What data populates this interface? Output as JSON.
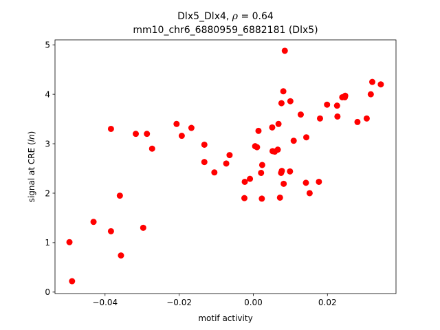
{
  "chart_data": {
    "type": "scatter",
    "title_line1": "Dlx5_Dlx4, ",
    "title_rho_symbol": "ρ",
    "title_rho_value": " = 0.64",
    "title_line2": "mm10_chr6_6880959_6882181 (Dlx5)",
    "xlabel": "motif activity",
    "ylabel_prefix": "signal at CRE (",
    "ylabel_ital": "ln",
    "ylabel_suffix": ")",
    "xlim": [
      -0.0535,
      0.0385
    ],
    "ylim": [
      -0.03,
      5.1
    ],
    "xticks": [
      -0.04,
      -0.02,
      0.0,
      0.02
    ],
    "xtick_labels": [
      "−0.04",
      "−0.02",
      "0.00",
      "0.02"
    ],
    "yticks": [
      0,
      1,
      2,
      3,
      4,
      5
    ],
    "ytick_labels": [
      "0",
      "1",
      "2",
      "3",
      "4",
      "5"
    ],
    "marker_color": "#ff0000",
    "grid": false,
    "points": [
      {
        "x": -0.0496,
        "y": 1.01
      },
      {
        "x": -0.0489,
        "y": 0.22
      },
      {
        "x": -0.0431,
        "y": 1.42
      },
      {
        "x": -0.0384,
        "y": 1.23
      },
      {
        "x": -0.0384,
        "y": 3.3
      },
      {
        "x": -0.036,
        "y": 1.95
      },
      {
        "x": -0.0357,
        "y": 0.74
      },
      {
        "x": -0.0317,
        "y": 3.2
      },
      {
        "x": -0.0297,
        "y": 1.3
      },
      {
        "x": -0.0287,
        "y": 3.2
      },
      {
        "x": -0.0273,
        "y": 2.9
      },
      {
        "x": -0.0207,
        "y": 3.4
      },
      {
        "x": -0.0193,
        "y": 3.16
      },
      {
        "x": -0.0167,
        "y": 3.32
      },
      {
        "x": -0.0132,
        "y": 2.98
      },
      {
        "x": -0.0132,
        "y": 2.63
      },
      {
        "x": -0.0105,
        "y": 2.42
      },
      {
        "x": -0.0073,
        "y": 2.6
      },
      {
        "x": -0.0064,
        "y": 2.77
      },
      {
        "x": -0.0024,
        "y": 1.9
      },
      {
        "x": -0.0023,
        "y": 2.23
      },
      {
        "x": -0.0009,
        "y": 2.29
      },
      {
        "x": 0.0005,
        "y": 2.95
      },
      {
        "x": 0.001,
        "y": 2.93
      },
      {
        "x": 0.0014,
        "y": 3.26
      },
      {
        "x": 0.0021,
        "y": 2.41
      },
      {
        "x": 0.0023,
        "y": 1.89
      },
      {
        "x": 0.0024,
        "y": 2.57
      },
      {
        "x": 0.0051,
        "y": 3.33
      },
      {
        "x": 0.0052,
        "y": 2.85
      },
      {
        "x": 0.0058,
        "y": 2.84
      },
      {
        "x": 0.0066,
        "y": 2.88
      },
      {
        "x": 0.0068,
        "y": 3.4
      },
      {
        "x": 0.0072,
        "y": 1.91
      },
      {
        "x": 0.0075,
        "y": 2.41
      },
      {
        "x": 0.0076,
        "y": 3.82
      },
      {
        "x": 0.0077,
        "y": 2.45
      },
      {
        "x": 0.0081,
        "y": 4.06
      },
      {
        "x": 0.0082,
        "y": 2.19
      },
      {
        "x": 0.0085,
        "y": 4.88
      },
      {
        "x": 0.0099,
        "y": 2.44
      },
      {
        "x": 0.01,
        "y": 3.86
      },
      {
        "x": 0.0109,
        "y": 3.06
      },
      {
        "x": 0.0128,
        "y": 3.59
      },
      {
        "x": 0.0142,
        "y": 2.21
      },
      {
        "x": 0.0143,
        "y": 3.13
      },
      {
        "x": 0.0152,
        "y": 2.0
      },
      {
        "x": 0.0177,
        "y": 2.23
      },
      {
        "x": 0.018,
        "y": 3.51
      },
      {
        "x": 0.0199,
        "y": 3.79
      },
      {
        "x": 0.0226,
        "y": 3.77
      },
      {
        "x": 0.0227,
        "y": 3.55
      },
      {
        "x": 0.024,
        "y": 3.94
      },
      {
        "x": 0.0247,
        "y": 3.94
      },
      {
        "x": 0.0248,
        "y": 3.97
      },
      {
        "x": 0.0281,
        "y": 3.44
      },
      {
        "x": 0.0306,
        "y": 3.51
      },
      {
        "x": 0.0317,
        "y": 4.0
      },
      {
        "x": 0.0321,
        "y": 4.25
      },
      {
        "x": 0.0344,
        "y": 4.2
      }
    ]
  }
}
